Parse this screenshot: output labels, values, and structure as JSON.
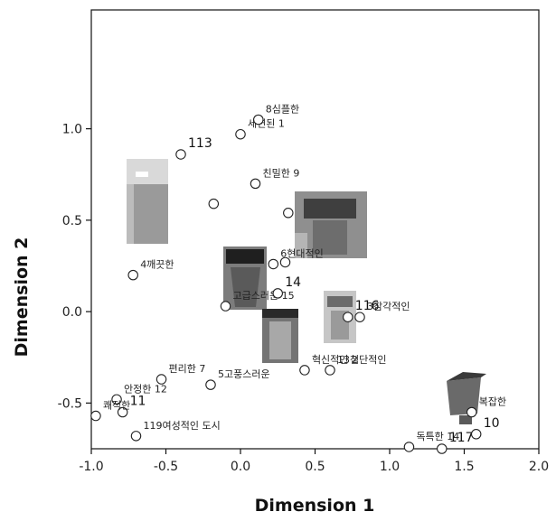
{
  "chart_data": {
    "type": "scatter",
    "title": "",
    "xlabel": "Dimension 1",
    "ylabel": "Dimension 2",
    "xlim": [
      -1.0,
      2.0
    ],
    "ylim": [
      -0.75,
      1.65
    ],
    "xticks": [
      "-1.0",
      "-0.5",
      "0.0",
      "0.5",
      "1.0",
      "1.5",
      "2.0"
    ],
    "yticks": [
      "-0.5",
      "0.0",
      "0.5",
      "1.0"
    ],
    "grid": false,
    "points": [
      {
        "x": -0.4,
        "y": 0.86,
        "label": "113"
      },
      {
        "x": 0.0,
        "y": 0.97,
        "label": "세련된 1"
      },
      {
        "x": 0.12,
        "y": 1.05,
        "label": "8심플한"
      },
      {
        "x": 0.1,
        "y": 0.7,
        "label": "친밀한 9"
      },
      {
        "x": -0.18,
        "y": 0.59,
        "label": ""
      },
      {
        "x": 0.32,
        "y": 0.54,
        "label": ""
      },
      {
        "x": -0.72,
        "y": 0.2,
        "label": "4깨끗한"
      },
      {
        "x": 0.22,
        "y": 0.26,
        "label": "6현대적인"
      },
      {
        "x": 0.3,
        "y": 0.27,
        "label": ""
      },
      {
        "x": -0.1,
        "y": 0.03,
        "label": "고급스러운 15"
      },
      {
        "x": 0.25,
        "y": 0.1,
        "label": "14"
      },
      {
        "x": 0.72,
        "y": -0.03,
        "label": "116"
      },
      {
        "x": 0.8,
        "y": -0.03,
        "label": "3감각적인"
      },
      {
        "x": 0.43,
        "y": -0.32,
        "label": "혁신적인 2"
      },
      {
        "x": 0.6,
        "y": -0.32,
        "label": "13첨단적인"
      },
      {
        "x": -0.53,
        "y": -0.37,
        "label": "편리한 7"
      },
      {
        "x": -0.2,
        "y": -0.4,
        "label": "5고풍스러운"
      },
      {
        "x": -0.83,
        "y": -0.48,
        "label": "안정한 12"
      },
      {
        "x": -0.79,
        "y": -0.55,
        "label": "11"
      },
      {
        "x": -0.97,
        "y": -0.57,
        "label": "쾌적한"
      },
      {
        "x": -0.7,
        "y": -0.68,
        "label": "119여성적인 도시"
      },
      {
        "x": 1.13,
        "y": -0.74,
        "label": "독특한 14"
      },
      {
        "x": 1.35,
        "y": -0.75,
        "label": "117"
      },
      {
        "x": 1.58,
        "y": -0.67,
        "label": "10"
      },
      {
        "x": 1.55,
        "y": -0.55,
        "label": "복잡한"
      }
    ]
  }
}
